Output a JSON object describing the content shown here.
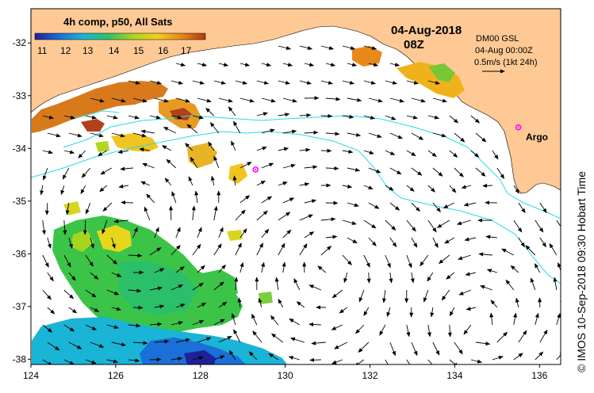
{
  "colorbar": {
    "title": "4h comp, p50, All Sats",
    "ticks": [
      "11",
      "12",
      "13",
      "14",
      "15",
      "16",
      "17"
    ],
    "colors": [
      "#20209a",
      "#1a6fd8",
      "#19b4d6",
      "#2bc46a",
      "#a6d51e",
      "#f0cf1c",
      "#e88a1a",
      "#b23a0e"
    ]
  },
  "header": {
    "date": "04-Aug-2018",
    "time": "08Z"
  },
  "current_legend": {
    "product": "DM00 GSL",
    "valid_time": "04-Aug 00:00Z",
    "scale": "0.5m/s (1kt 24h)"
  },
  "argo": {
    "label": "Argo",
    "marker_color": "#ff00ff",
    "floats": [
      {
        "lon": 135.5,
        "lat": -33.6
      },
      {
        "lon": 129.3,
        "lat": -34.4
      }
    ]
  },
  "axes": {
    "lon_ticks": [
      "124",
      "126",
      "128",
      "130",
      "132",
      "134",
      "136"
    ],
    "lat_ticks": [
      "-32",
      "-33",
      "-34",
      "-35",
      "-36",
      "-37",
      "-38"
    ],
    "lon_range": [
      124,
      136.5
    ],
    "lat_range": [
      -38.1,
      -31.35
    ]
  },
  "credit": "© IMOS 10-Sep-2018 09:30 Hobart Time",
  "colors": {
    "land": "#fec994",
    "ocean": "#ffffff",
    "isobath": "#22dde8",
    "arrow": "#000000"
  }
}
